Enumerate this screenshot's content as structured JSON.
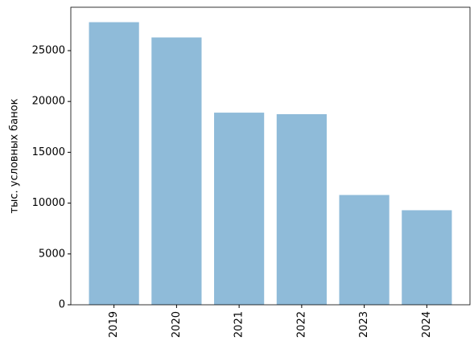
{
  "chart_data": {
    "type": "bar",
    "ylabel": "тыс. условных банок",
    "categories": [
      "2019",
      "2020",
      "2021",
      "2022",
      "2023",
      "2024"
    ],
    "values": [
      27800,
      26300,
      18900,
      18750,
      10800,
      9300
    ],
    "color": "#8fbbd9",
    "ylim": [
      0,
      29270
    ],
    "yticks": [
      0,
      5000,
      10000,
      15000,
      20000,
      25000
    ]
  }
}
